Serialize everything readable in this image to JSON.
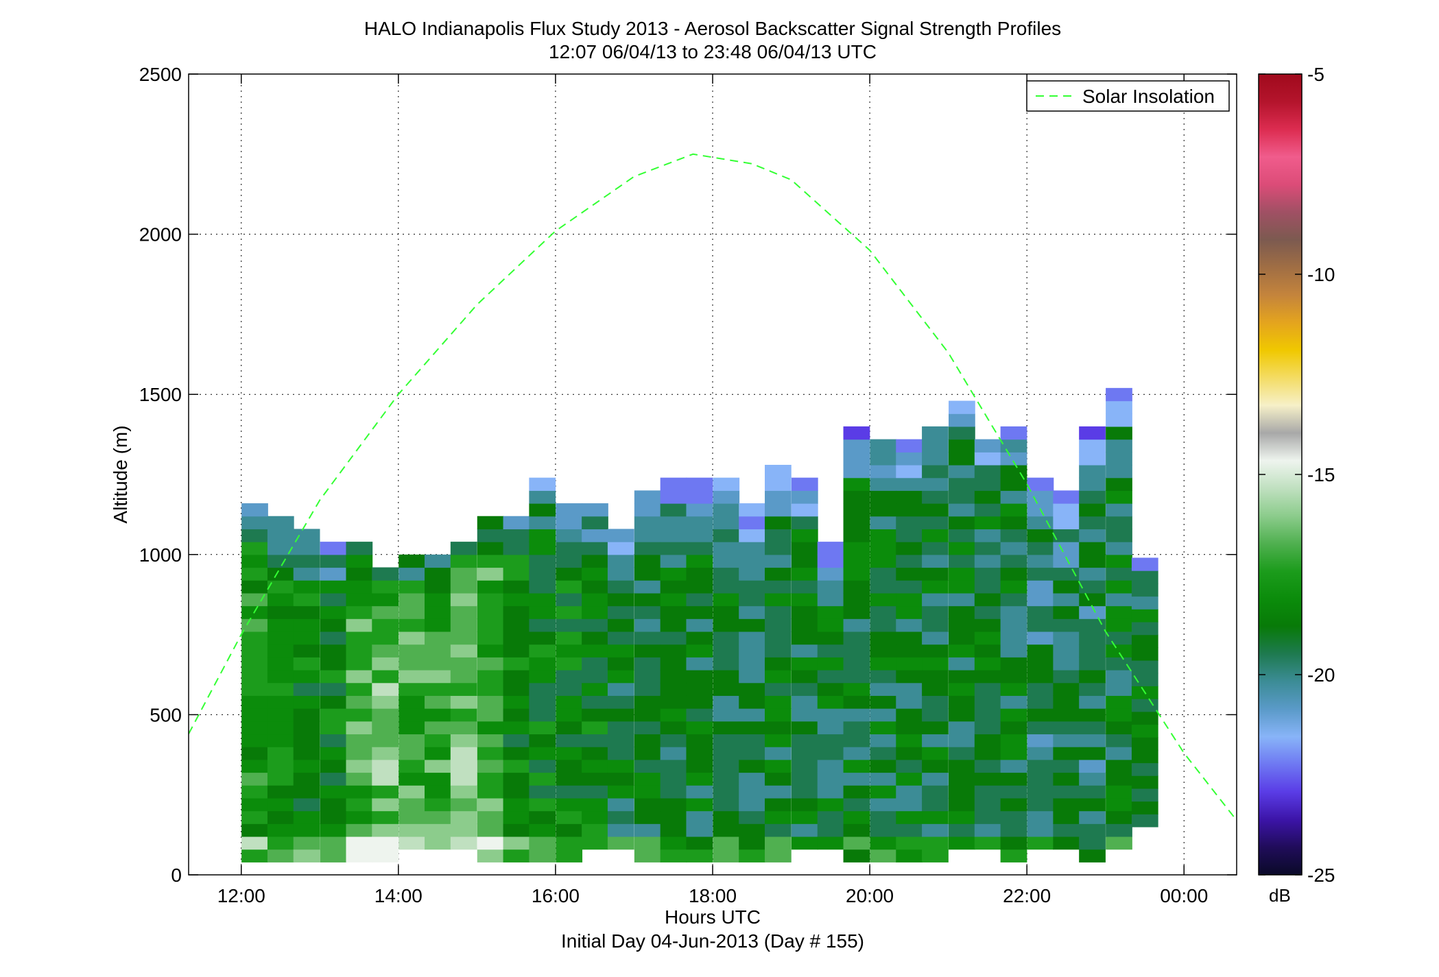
{
  "chart_data": {
    "type": "heatmap",
    "title": "HALO Indianapolis Flux Study 2013 - Aerosol Backscatter Signal Strength Profiles",
    "subtitle": "12:07 06/04/13 to 23:48 06/04/13  UTC",
    "xlabel": "Hours UTC",
    "xlabel2": "Initial Day 04-Jun-2013 (Day # 155)",
    "ylabel": "Altitude (m)",
    "xlim": [
      11.33,
      24.67
    ],
    "ylim": [
      0,
      2500
    ],
    "x_ticks": [
      12,
      14,
      16,
      18,
      20,
      22,
      24
    ],
    "x_tick_labels": [
      "12:00",
      "14:00",
      "16:00",
      "18:00",
      "20:00",
      "22:00",
      "00:00"
    ],
    "y_ticks": [
      0,
      500,
      1000,
      1500,
      2000,
      2500
    ],
    "y_tick_labels": [
      "0",
      "500",
      "1000",
      "1500",
      "2000",
      "2500"
    ],
    "grid": true,
    "legend": {
      "position": "top-right",
      "entries": [
        "Solar Insolation"
      ]
    },
    "colorbar": {
      "label": "dB",
      "range": [
        -25,
        -5
      ],
      "ticks": [
        -25,
        -20,
        -15,
        -10,
        -5
      ],
      "tick_labels": [
        "-25",
        "-20",
        "-15",
        "-10",
        "-5"
      ],
      "colors": [
        "#0a0a28",
        "#200c5a",
        "#3c14a8",
        "#5a3ce6",
        "#6e78f2",
        "#88b4f8",
        "#5a9ac8",
        "#3c8c96",
        "#1e7a50",
        "#087a08",
        "#0b8c0b",
        "#1c9c1c",
        "#50b050",
        "#8ccc8c",
        "#c0e0c0",
        "#eef4ee",
        "#a8a8a8",
        "#f6f0c8",
        "#f4dc64",
        "#f0c800",
        "#e4a41e",
        "#c4843c",
        "#a06e44",
        "#7c5a50",
        "#a05064",
        "#dc4c78",
        "#f05c8c",
        "#dc2c50",
        "#b4142c",
        "#a00a1c"
      ]
    },
    "series": [
      {
        "name": "Solar Insolation",
        "style": "dashed",
        "color": "#33ff33",
        "x": [
          11.33,
          12.0,
          13.0,
          14.0,
          15.0,
          16.0,
          17.0,
          17.75,
          18.5,
          19.0,
          20.0,
          21.0,
          22.0,
          23.0,
          24.0,
          24.67
        ],
        "y": [
          440,
          750,
          1170,
          1500,
          1780,
          2010,
          2180,
          2250,
          2220,
          2170,
          1950,
          1630,
          1220,
          760,
          380,
          170
        ]
      }
    ],
    "heatmap": {
      "bin_width_hours": 0.333,
      "bin_height_m": 40,
      "profiles": [
        {
          "x": 12.17,
          "top": 1150,
          "bottom": 40,
          "value": -17.5
        },
        {
          "x": 12.5,
          "top": 1110,
          "bottom": 40,
          "value": -18.0
        },
        {
          "x": 12.83,
          "top": 1070,
          "bottom": 40,
          "value": -18.5
        },
        {
          "x": 13.17,
          "top": 1030,
          "bottom": 40,
          "value": -18.5
        },
        {
          "x": 13.5,
          "top": 1030,
          "bottom": 40,
          "value": -17.0
        },
        {
          "x": 13.83,
          "top": 950,
          "bottom": 40,
          "value": -16.5
        },
        {
          "x": 14.17,
          "top": 990,
          "bottom": 80,
          "value": -17.0
        },
        {
          "x": 14.5,
          "top": 990,
          "bottom": 80,
          "value": -17.0
        },
        {
          "x": 14.83,
          "top": 1030,
          "bottom": 80,
          "value": -16.5
        },
        {
          "x": 15.17,
          "top": 1110,
          "bottom": 40,
          "value": -17.0
        },
        {
          "x": 15.5,
          "top": 1110,
          "bottom": 40,
          "value": -18.0
        },
        {
          "x": 15.83,
          "top": 1230,
          "bottom": 40,
          "value": -18.5
        },
        {
          "x": 16.17,
          "top": 1150,
          "bottom": 40,
          "value": -18.5
        },
        {
          "x": 16.5,
          "top": 1150,
          "bottom": 80,
          "value": -18.5
        },
        {
          "x": 16.83,
          "top": 1070,
          "bottom": 80,
          "value": -19.0
        },
        {
          "x": 17.17,
          "top": 1190,
          "bottom": 40,
          "value": -19.0
        },
        {
          "x": 17.5,
          "top": 1230,
          "bottom": 40,
          "value": -19.0
        },
        {
          "x": 17.83,
          "top": 1230,
          "bottom": 40,
          "value": -19.0
        },
        {
          "x": 18.17,
          "top": 1230,
          "bottom": 40,
          "value": -19.0
        },
        {
          "x": 18.5,
          "top": 1150,
          "bottom": 40,
          "value": -19.5
        },
        {
          "x": 18.83,
          "top": 1270,
          "bottom": 40,
          "value": -19.0
        },
        {
          "x": 19.17,
          "top": 1230,
          "bottom": 80,
          "value": -19.0
        },
        {
          "x": 19.5,
          "top": 1030,
          "bottom": 80,
          "value": -19.0
        },
        {
          "x": 19.83,
          "top": 1390,
          "bottom": 40,
          "value": -19.0
        },
        {
          "x": 20.17,
          "top": 1350,
          "bottom": 40,
          "value": -19.0
        },
        {
          "x": 20.5,
          "top": 1350,
          "bottom": 40,
          "value": -19.0
        },
        {
          "x": 20.83,
          "top": 1390,
          "bottom": 40,
          "value": -19.0
        },
        {
          "x": 21.17,
          "top": 1470,
          "bottom": 80,
          "value": -19.0
        },
        {
          "x": 21.5,
          "top": 1350,
          "bottom": 80,
          "value": -19.0
        },
        {
          "x": 21.83,
          "top": 1390,
          "bottom": 40,
          "value": -19.0
        },
        {
          "x": 22.17,
          "top": 1230,
          "bottom": 80,
          "value": -19.5
        },
        {
          "x": 22.5,
          "top": 1190,
          "bottom": 80,
          "value": -19.5
        },
        {
          "x": 22.83,
          "top": 1390,
          "bottom": 40,
          "value": -19.5
        },
        {
          "x": 23.17,
          "top": 1510,
          "bottom": 80,
          "value": -19.0
        },
        {
          "x": 23.5,
          "top": 990,
          "bottom": 150,
          "value": -19.0
        }
      ]
    }
  }
}
